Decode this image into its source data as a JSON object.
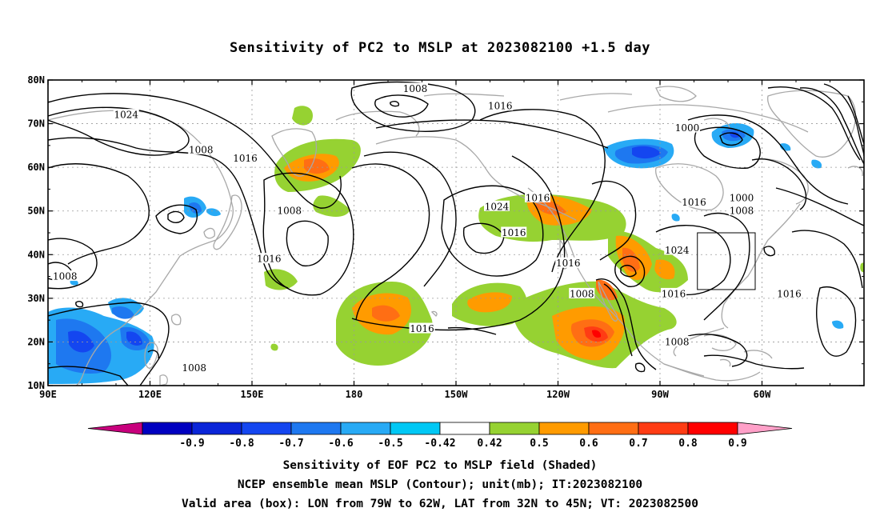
{
  "title": "Sensitivity of PC2 to MSLP at 2023082100 +1.5 day",
  "lat_ticks": [
    "80N",
    "70N",
    "60N",
    "50N",
    "40N",
    "30N",
    "20N",
    "10N"
  ],
  "lon_ticks": [
    "90E",
    "120E",
    "150E",
    "180",
    "150W",
    "120W",
    "90W",
    "60W"
  ],
  "contour_labels": [
    {
      "text": "1008",
      "lon": -162,
      "lat": 78
    },
    {
      "text": "1024",
      "lon": 113,
      "lat": 72
    },
    {
      "text": "1016",
      "lon": -137,
      "lat": 74
    },
    {
      "text": "1000",
      "lon": -82,
      "lat": 69
    },
    {
      "text": "1008",
      "lon": 135,
      "lat": 64
    },
    {
      "text": "1016",
      "lon": 148,
      "lat": 62
    },
    {
      "text": "1016",
      "lon": -126,
      "lat": 53
    },
    {
      "text": "1016",
      "lon": -80,
      "lat": 52
    },
    {
      "text": "1000",
      "lon": -66,
      "lat": 53
    },
    {
      "text": "1008",
      "lon": -66,
      "lat": 50
    },
    {
      "text": "1008",
      "lon": 161,
      "lat": 50
    },
    {
      "text": "1024",
      "lon": -138,
      "lat": 51
    },
    {
      "text": "1016",
      "lon": -133,
      "lat": 45
    },
    {
      "text": "1024",
      "lon": -85,
      "lat": 41
    },
    {
      "text": "1016",
      "lon": 155,
      "lat": 39
    },
    {
      "text": "1016",
      "lon": -117,
      "lat": 38
    },
    {
      "text": "1008",
      "lon": 95,
      "lat": 35
    },
    {
      "text": "1016",
      "lon": -86,
      "lat": 31
    },
    {
      "text": "1016",
      "lon": -52,
      "lat": 31
    },
    {
      "text": "1008",
      "lon": -113,
      "lat": 31
    },
    {
      "text": "1016",
      "lon": -160,
      "lat": 23
    },
    {
      "text": "1008",
      "lon": -85,
      "lat": 20
    },
    {
      "text": "1008",
      "lon": 133,
      "lat": 14
    }
  ],
  "valid_box": {
    "lon_min": -79,
    "lon_max": -62,
    "lat_min": 32,
    "lat_max": 45
  },
  "colorbar": {
    "labels": [
      "-0.9",
      "-0.8",
      "-0.7",
      "-0.6",
      "-0.5",
      "-0.42",
      "0.42",
      "0.5",
      "0.6",
      "0.7",
      "0.8",
      "0.9"
    ],
    "colors": [
      "#c8007d",
      "#0000c0",
      "#0a25d8",
      "#1446f0",
      "#1e78f0",
      "#28aaf5",
      "#00c8f5",
      "#ffffff",
      "#96d232",
      "#ff9b00",
      "#ff6e14",
      "#ff3c14",
      "#ff0000",
      "#ffa0c8"
    ]
  },
  "captions": {
    "line1": "Sensitivity of EOF PC2 to MSLP field (Shaded)",
    "line2": "NCEP ensemble mean MSLP (Contour); unit(mb); IT:2023082100",
    "line3": "Valid area (box): LON from 79W to 62W, LAT from 32N to 45N; VT: 2023082500"
  }
}
